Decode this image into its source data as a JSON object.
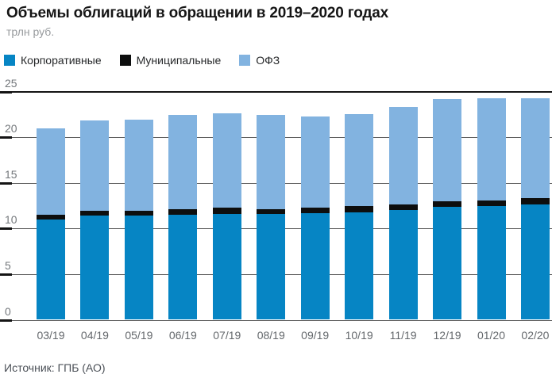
{
  "header": {
    "title": "Объемы облигаций в обращении в 2019–2020 годах",
    "subtitle": "трлн руб."
  },
  "footer": {
    "source": "Источник: ГПБ (АО)"
  },
  "colors": {
    "corporate": "#0685c4",
    "municipal": "#0d0e0e",
    "ofz": "#82b3e0",
    "gridline": "#5f5f5f",
    "axis_text": "#74787c"
  },
  "chart_data": {
    "type": "bar",
    "stacked": true,
    "title": "Объемы облигаций в обращении в 2019–2020 годах",
    "ylabel": "трлн руб.",
    "xlabel": "",
    "ylim": [
      0,
      25
    ],
    "yticks": [
      0,
      5,
      10,
      15,
      20,
      25
    ],
    "grid": true,
    "legend_position": "top",
    "categories": [
      "03/19",
      "04/19",
      "05/19",
      "06/19",
      "07/19",
      "08/19",
      "09/19",
      "10/19",
      "11/19",
      "12/19",
      "01/20",
      "02/20"
    ],
    "series": [
      {
        "name": "Корпоративные",
        "color": "#0685c4",
        "values": [
          11.0,
          11.4,
          11.4,
          11.5,
          11.6,
          11.55,
          11.7,
          11.8,
          12.05,
          12.4,
          12.45,
          12.6
        ]
      },
      {
        "name": "Муниципальные",
        "color": "#0d0e0e",
        "values": [
          0.5,
          0.5,
          0.55,
          0.6,
          0.65,
          0.6,
          0.6,
          0.65,
          0.6,
          0.6,
          0.65,
          0.7
        ]
      },
      {
        "name": "ОФЗ",
        "color": "#82b3e0",
        "values": [
          9.5,
          9.95,
          10.0,
          10.3,
          10.35,
          10.3,
          9.95,
          10.05,
          10.65,
          11.15,
          11.15,
          10.95
        ]
      }
    ],
    "totals": [
      21.0,
      21.85,
      21.95,
      22.4,
      22.6,
      22.45,
      22.25,
      22.5,
      23.3,
      24.15,
      24.25,
      24.25
    ]
  }
}
